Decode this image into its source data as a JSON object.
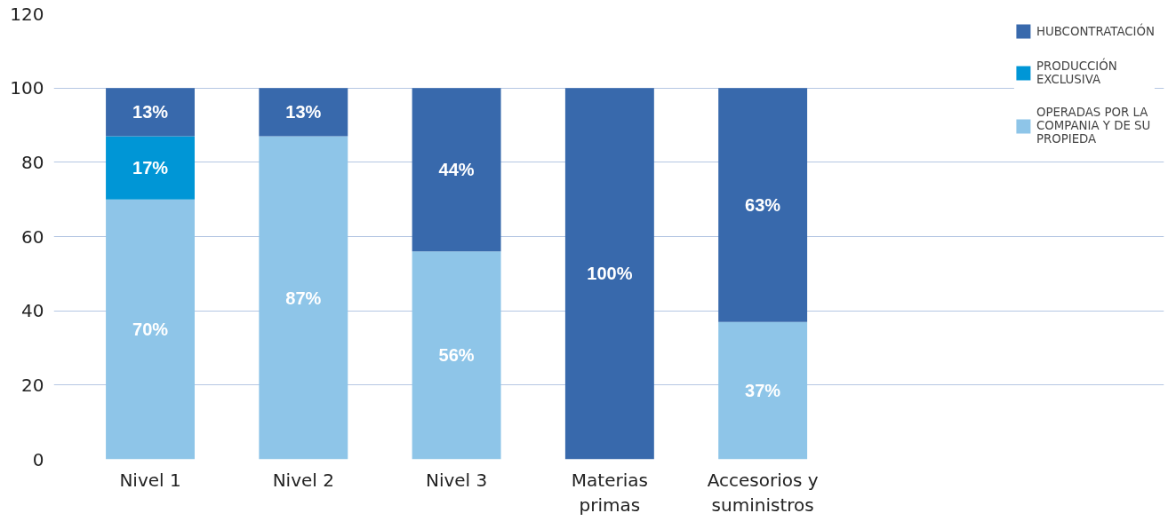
{
  "chart_data": {
    "type": "bar",
    "stacked": true,
    "categories": [
      "Nivel 1",
      "Nivel 2",
      "Nivel 3",
      "Materias primas",
      "Accesorios y suministros"
    ],
    "series": [
      {
        "name": "OPERADAS POR LA COMPANIA Y DE SU PROPIEDA",
        "color": "#8ec5e8",
        "values": [
          70,
          87,
          56,
          null,
          37
        ],
        "value_labels": [
          "70%",
          "87%",
          "56%",
          null,
          "37%"
        ]
      },
      {
        "name": "PRODUCCIÓN EXCLUSIVA",
        "color": "#0096d6",
        "values": [
          17,
          null,
          null,
          null,
          null
        ],
        "value_labels": [
          "17%",
          null,
          null,
          null,
          null
        ]
      },
      {
        "name": "HUBCONTRATACIÓN",
        "color": "#3869ac",
        "values": [
          13,
          13,
          44,
          100,
          63
        ],
        "value_labels": [
          "13%",
          "13%",
          "44%",
          "100%",
          "63%"
        ]
      }
    ],
    "ylim": [
      0,
      120
    ],
    "yticks": [
      0,
      20,
      40,
      60,
      80,
      100,
      120
    ],
    "grid": "y",
    "legend": "top right"
  }
}
